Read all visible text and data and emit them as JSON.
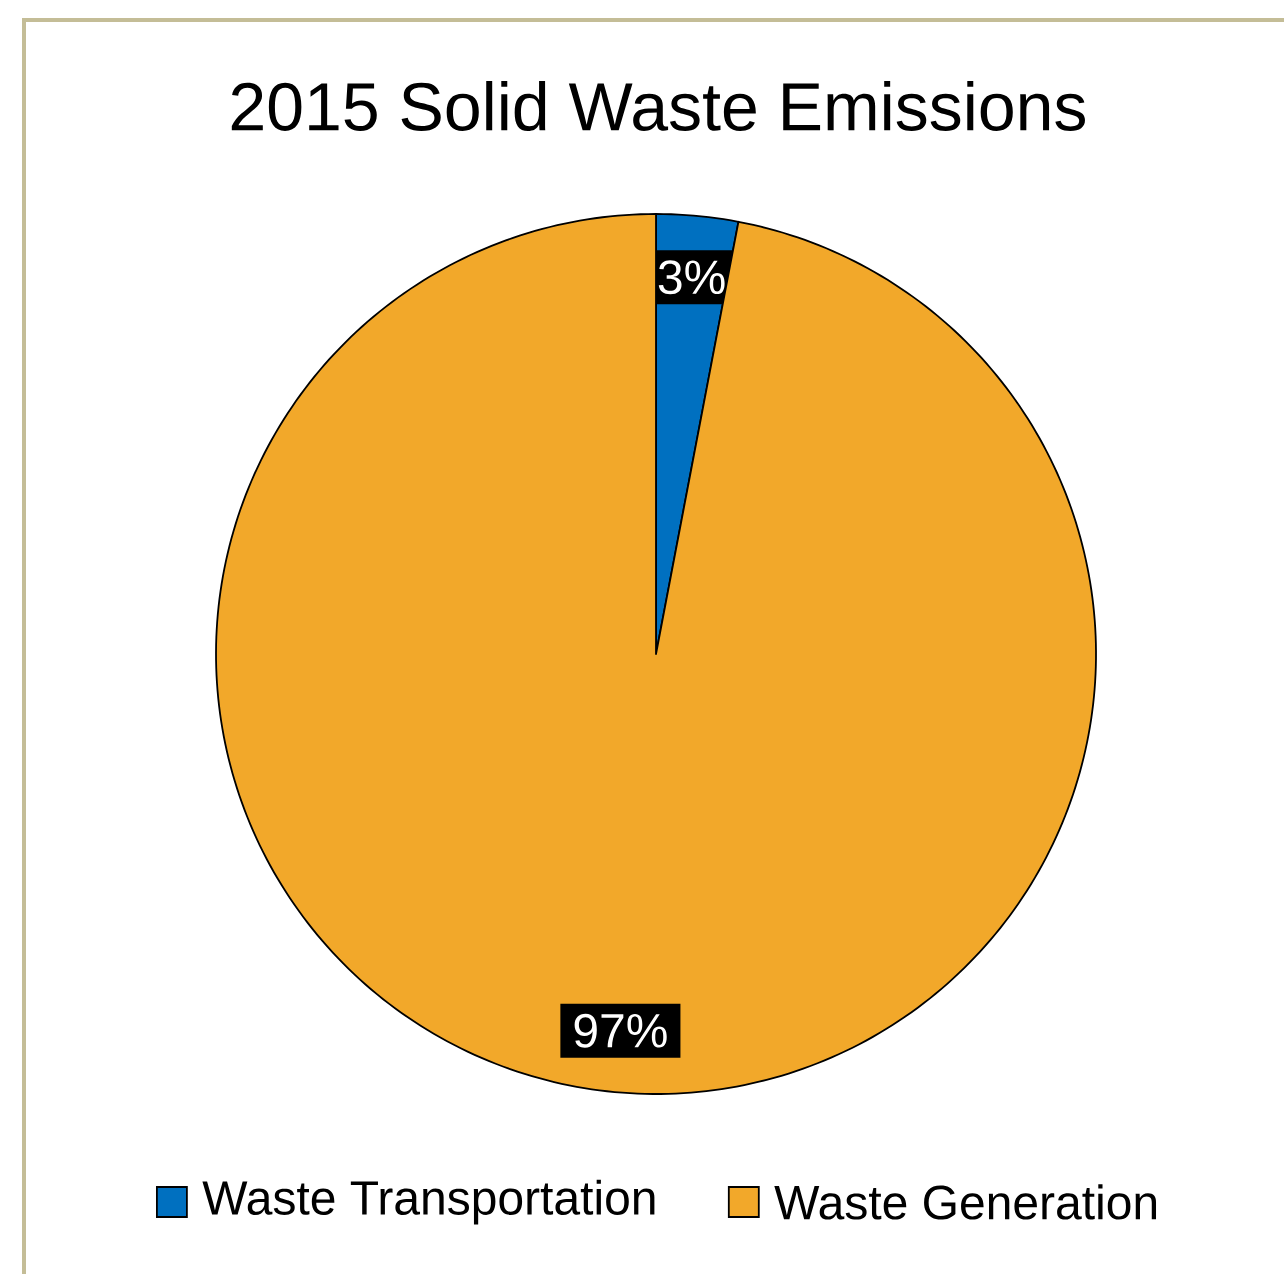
{
  "chart_data": {
    "type": "pie",
    "title": "2015 Solid Waste Emissions",
    "categories": [
      "Waste Transportation",
      "Waste Generation"
    ],
    "values": [
      3,
      97
    ],
    "colors": [
      "#0070c0",
      "#f2a82a"
    ],
    "value_labels": [
      "3%",
      "97%"
    ],
    "legend": "bottom"
  }
}
